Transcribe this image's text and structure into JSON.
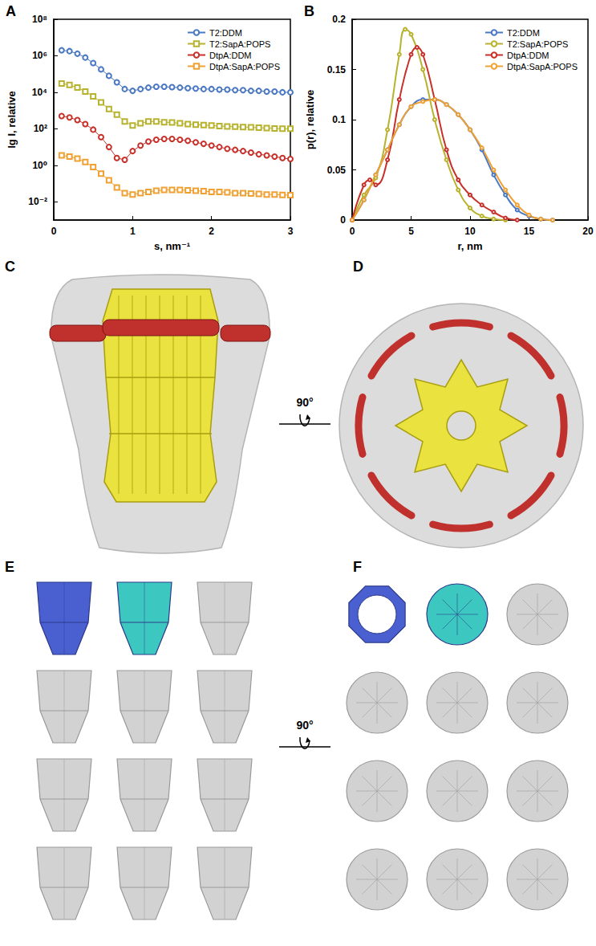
{
  "chart_data": [
    {
      "type": "line",
      "title": "A",
      "x_label": "s, nm⁻¹",
      "y_label": "lg I, relative",
      "log": "y",
      "grid": false,
      "legend": "upper right",
      "x": [
        0.1,
        0.2,
        0.3,
        0.4,
        0.5,
        0.6,
        0.7,
        0.8,
        0.9,
        1.0,
        1.1,
        1.2,
        1.3,
        1.4,
        1.5,
        1.6,
        1.7,
        1.8,
        1.9,
        2.0,
        2.1,
        2.2,
        2.3,
        2.4,
        2.5,
        2.6,
        2.7,
        2.8,
        2.9,
        3.0
      ],
      "xlim": [
        0,
        3
      ],
      "xticks": [
        0,
        1,
        2,
        3
      ],
      "ylim": [
        0.001,
        100000000
      ],
      "yticks": [
        {
          "value": 0.01,
          "label": "10⁻²"
        },
        {
          "value": 1,
          "label": "10⁰"
        },
        {
          "value": 100,
          "label": "10²"
        },
        {
          "value": 10000,
          "label": "10⁴"
        },
        {
          "value": 1000000,
          "label": "10⁶"
        },
        {
          "value": 100000000,
          "label": "10⁸"
        }
      ],
      "series": [
        {
          "name": "T2:DDM",
          "color": "#4a78c2",
          "marker": "circle",
          "values": [
            2000000,
            1800000,
            1300000,
            800000,
            400000,
            180000,
            80000,
            35000,
            15000,
            12000,
            15000,
            18000,
            20000,
            20000,
            19000,
            18000,
            17000,
            16000,
            15000,
            15000,
            14000,
            14000,
            13000,
            13000,
            12000,
            12000,
            11000,
            11000,
            10000,
            10000
          ]
        },
        {
          "name": "T2:SapA:POPS",
          "color": "#b8b32e",
          "marker": "square",
          "values": [
            30000,
            25000,
            18000,
            11000,
            6000,
            2800,
            1200,
            600,
            250,
            150,
            200,
            250,
            250,
            230,
            220,
            200,
            180,
            170,
            160,
            150,
            140,
            135,
            130,
            125,
            120,
            115,
            110,
            105,
            100,
            100
          ]
        },
        {
          "name": "DtpA:DDM",
          "color": "#c8302a",
          "marker": "circle",
          "values": [
            500,
            420,
            300,
            180,
            90,
            35,
            10,
            2.5,
            2,
            6,
            12,
            20,
            25,
            28,
            28,
            25,
            22,
            18,
            15,
            12,
            10,
            8,
            7,
            6,
            5,
            4,
            3.5,
            3,
            2.5,
            2.2
          ]
        },
        {
          "name": "DtpA:SapA:POPS",
          "color": "#f0a133",
          "marker": "square",
          "values": [
            3.5,
            3,
            2.3,
            1.5,
            0.8,
            0.35,
            0.15,
            0.06,
            0.03,
            0.025,
            0.03,
            0.035,
            0.04,
            0.045,
            0.045,
            0.045,
            0.042,
            0.04,
            0.038,
            0.035,
            0.035,
            0.033,
            0.03,
            0.03,
            0.028,
            0.027,
            0.025,
            0.025,
            0.024,
            0.023
          ]
        }
      ]
    },
    {
      "type": "line",
      "title": "B",
      "x_label": "r, nm",
      "y_label": "p(r), relative",
      "grid": false,
      "legend": "upper right",
      "xlim": [
        0,
        20
      ],
      "xticks": [
        0,
        5,
        10,
        15,
        20
      ],
      "ylim": [
        0,
        0.2
      ],
      "yticks": [
        0,
        0.05,
        0.1,
        0.15,
        0.2
      ],
      "series": [
        {
          "name": "T2:DDM",
          "color": "#4a78c2",
          "marker": "circle",
          "x": [
            0,
            1,
            2,
            3,
            4,
            5,
            6,
            7,
            8,
            9,
            10,
            11,
            12,
            13,
            14,
            15,
            16,
            17
          ],
          "values": [
            0,
            0.02,
            0.045,
            0.07,
            0.095,
            0.113,
            0.12,
            0.12,
            0.115,
            0.105,
            0.09,
            0.07,
            0.045,
            0.025,
            0.01,
            0.004,
            0.001,
            0
          ]
        },
        {
          "name": "T2:SapA:POPS",
          "color": "#b8b32e",
          "marker": "circle",
          "x": [
            0,
            1,
            2,
            3,
            4,
            4.5,
            5,
            6,
            7,
            8,
            9,
            10,
            11,
            12,
            13
          ],
          "values": [
            0,
            0.025,
            0.042,
            0.09,
            0.165,
            0.19,
            0.185,
            0.15,
            0.1,
            0.06,
            0.03,
            0.012,
            0.004,
            0.001,
            0
          ]
        },
        {
          "name": "DtpA:DDM",
          "color": "#c8302a",
          "marker": "circle",
          "x": [
            0,
            1,
            1.5,
            2,
            3,
            4,
            5,
            5.5,
            6,
            7,
            8,
            9,
            10,
            11,
            12,
            13,
            14
          ],
          "values": [
            0,
            0.035,
            0.04,
            0.035,
            0.06,
            0.12,
            0.165,
            0.172,
            0.165,
            0.12,
            0.07,
            0.04,
            0.025,
            0.015,
            0.008,
            0.002,
            0
          ]
        },
        {
          "name": "DtpA:SapA:POPS",
          "color": "#f0a133",
          "marker": "circle",
          "x": [
            0,
            1,
            2,
            3,
            4,
            5,
            6,
            7,
            8,
            9,
            10,
            11,
            12,
            13,
            14,
            15,
            16,
            17
          ],
          "values": [
            0,
            0.02,
            0.045,
            0.07,
            0.095,
            0.113,
            0.118,
            0.12,
            0.115,
            0.105,
            0.09,
            0.072,
            0.05,
            0.03,
            0.015,
            0.005,
            0.001,
            0
          ]
        }
      ]
    }
  ],
  "panels": {
    "letters": [
      "C",
      "D",
      "E",
      "F"
    ],
    "rotations": [
      "90°",
      "90°"
    ]
  }
}
